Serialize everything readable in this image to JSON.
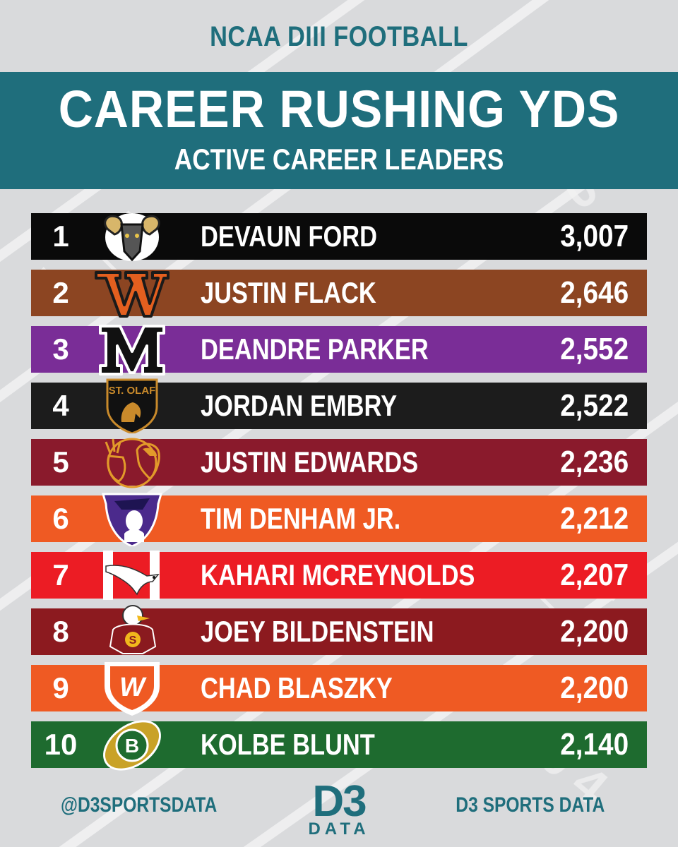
{
  "header": {
    "top_title": "NCAA DIII FOOTBALL",
    "title": "CAREER RUSHING YDS",
    "subtitle": "ACTIVE CAREER LEADERS"
  },
  "colors": {
    "background": "#d9dadc",
    "teal": "#1f6e7c",
    "text_light": "#ffffff"
  },
  "leaders": [
    {
      "rank": "1",
      "name": "DEVAUN FORD",
      "yards": "3,007",
      "row_color": "#0a0a0a",
      "logo_icon": "ram-icon"
    },
    {
      "rank": "2",
      "name": "JUSTIN FLACK",
      "yards": "2,646",
      "row_color": "#8c4522",
      "logo_icon": "w-serif-icon"
    },
    {
      "rank": "3",
      "name": "DEANDRE PARKER",
      "yards": "2,552",
      "row_color": "#7a2d97",
      "logo_icon": "m-letter-icon"
    },
    {
      "rank": "4",
      "name": "JORDAN EMBRY",
      "yards": "2,522",
      "row_color": "#1c1c1c",
      "logo_icon": "st-olaf-shield-icon"
    },
    {
      "rank": "5",
      "name": "JUSTIN EDWARDS",
      "yards": "2,236",
      "row_color": "#8a1a2c",
      "logo_icon": "deer-spartan-icon"
    },
    {
      "rank": "6",
      "name": "TIM DENHAM JR.",
      "yards": "2,212",
      "row_color": "#ef5a23",
      "logo_icon": "minuteman-icon"
    },
    {
      "rank": "7",
      "name": "KAHARI MCREYNOLDS",
      "yards": "2,207",
      "row_color": "#ec1c24",
      "logo_icon": "hawk-h-icon"
    },
    {
      "rank": "8",
      "name": "JOEY BILDENSTEIN",
      "yards": "2,200",
      "row_color": "#8c1a1f",
      "logo_icon": "eagle-mascot-icon"
    },
    {
      "rank": "9",
      "name": "CHAD BLASZKY",
      "yards": "2,200",
      "row_color": "#ef5a23",
      "logo_icon": "w-shield-icon"
    },
    {
      "rank": "10",
      "name": "KOLBE BLUNT",
      "yards": "2,140",
      "row_color": "#1e6b2f",
      "logo_icon": "b-football-icon"
    }
  ],
  "footer": {
    "handle": "@D3SPORTSDATA",
    "logo_main": "D3",
    "logo_sub": "DATA",
    "brand": "D3 SPORTS DATA"
  }
}
